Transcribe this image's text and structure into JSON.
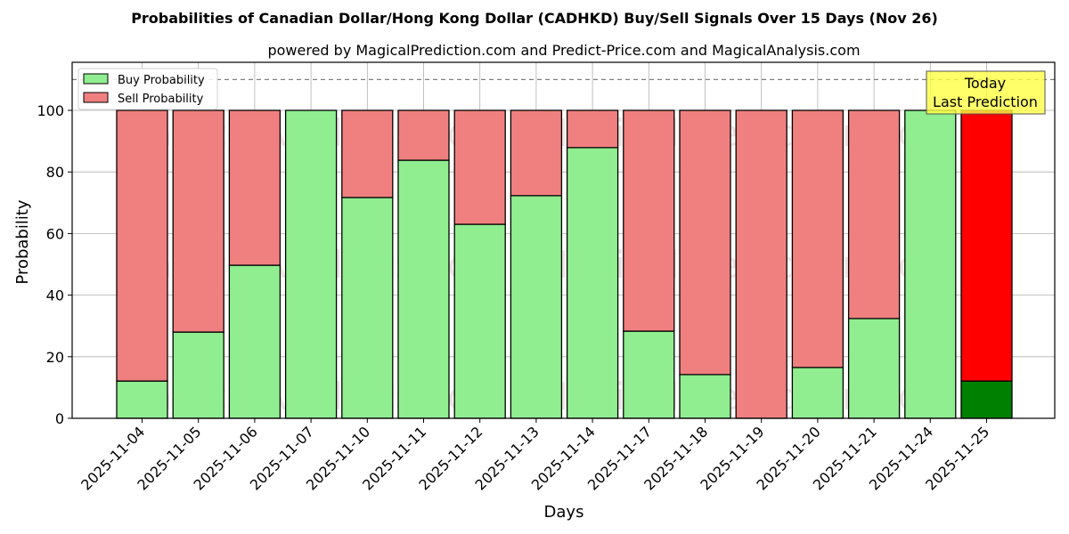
{
  "chart_data": {
    "type": "bar",
    "stacked": true,
    "title": "Probabilities of Canadian Dollar/Hong Kong Dollar (CADHKD) Buy/Sell Signals Over 15 Days (Nov 26)",
    "subtitle": "powered by MagicalPrediction.com and Predict-Price.com and MagicalAnalysis.com",
    "xlabel": "Days",
    "ylabel": "Probability",
    "ylim": [
      0,
      115.6
    ],
    "yticks": [
      0,
      20,
      40,
      60,
      80,
      100
    ],
    "grid": true,
    "reference_line": 110,
    "legend": {
      "position": "upper left",
      "entries": [
        "Buy Probability",
        "Sell Probability"
      ]
    },
    "categories": [
      "2025-11-04",
      "2025-11-05",
      "2025-11-06",
      "2025-11-07",
      "2025-11-10",
      "2025-11-11",
      "2025-11-12",
      "2025-11-13",
      "2025-11-14",
      "2025-11-17",
      "2025-11-18",
      "2025-11-19",
      "2025-11-20",
      "2025-11-21",
      "2025-11-24",
      "2025-11-25"
    ],
    "series": [
      {
        "name": "Buy Probability",
        "color": "#90ee90",
        "values": [
          12.1,
          28.0,
          49.7,
          100.0,
          71.7,
          83.8,
          63.0,
          72.3,
          87.9,
          28.3,
          14.2,
          0.0,
          16.5,
          32.4,
          100.0,
          12.1
        ]
      },
      {
        "name": "Sell Probability",
        "color": "#f08080",
        "values": [
          87.9,
          72.0,
          50.3,
          0.0,
          28.3,
          16.2,
          37.0,
          27.7,
          12.1,
          71.7,
          85.8,
          100.0,
          83.5,
          67.6,
          0.0,
          87.9
        ]
      }
    ],
    "highlight": {
      "index": 15,
      "buy_color": "#008000",
      "sell_color": "#ff0000"
    },
    "annotation": {
      "lines": [
        "Today",
        "Last Prediction"
      ],
      "bg": "#ffff44"
    },
    "watermarks": [
      "MagicalAnalysis.com",
      "MagicalPrediction.com"
    ]
  }
}
